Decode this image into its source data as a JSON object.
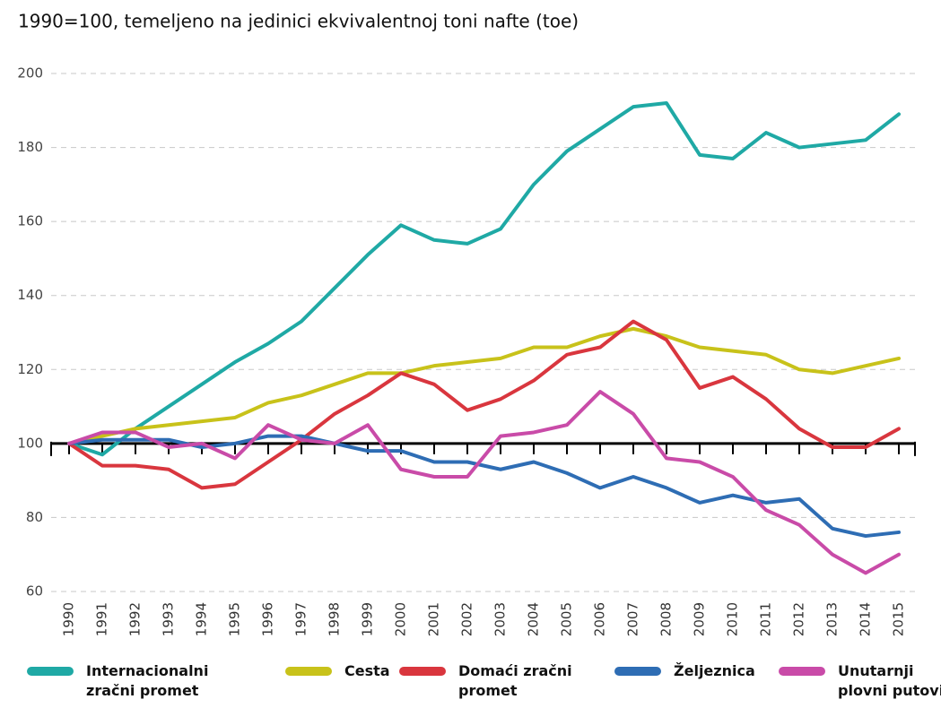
{
  "chart_data": {
    "type": "line",
    "title": "1990=100, temeljeno na jedinici ekvivalentnoj toni nafte (toe)",
    "categories": [
      "1990",
      "1991",
      "1992",
      "1993",
      "1994",
      "1995",
      "1996",
      "1997",
      "1998",
      "1999",
      "2000",
      "2001",
      "2002",
      "2003",
      "2004",
      "2005",
      "2006",
      "2007",
      "2008",
      "2009",
      "2010",
      "2011",
      "2012",
      "2013",
      "2014",
      "2015"
    ],
    "series": [
      {
        "name": "Internacionalni zračni promet",
        "color": "#1fa9a5",
        "values": [
          100,
          97,
          104,
          110,
          116,
          122,
          127,
          133,
          142,
          151,
          159,
          155,
          154,
          158,
          170,
          179,
          185,
          191,
          192,
          178,
          177,
          184,
          180,
          181,
          182,
          189
        ]
      },
      {
        "name": "Cesta",
        "color": "#c8c21a",
        "values": [
          100,
          102,
          104,
          105,
          106,
          107,
          111,
          113,
          116,
          119,
          119,
          121,
          122,
          123,
          126,
          126,
          129,
          131,
          129,
          126,
          125,
          124,
          120,
          119,
          121,
          123
        ]
      },
      {
        "name": "Domaći zračni promet",
        "color": "#d9363e",
        "values": [
          100,
          94,
          94,
          93,
          88,
          89,
          95,
          101,
          108,
          113,
          119,
          116,
          109,
          112,
          117,
          124,
          126,
          133,
          128,
          115,
          118,
          112,
          104,
          99,
          99,
          104
        ]
      },
      {
        "name": "Željeznica",
        "color": "#2e6db4",
        "values": [
          100,
          101,
          101,
          101,
          99,
          100,
          102,
          102,
          100,
          98,
          98,
          95,
          95,
          93,
          95,
          92,
          88,
          91,
          88,
          84,
          86,
          84,
          85,
          77,
          75,
          76
        ]
      },
      {
        "name": "Unutarnji plovni putovi",
        "color": "#c94ba8",
        "values": [
          100,
          103,
          103,
          99,
          100,
          96,
          105,
          101,
          100,
          105,
          93,
          91,
          91,
          102,
          103,
          105,
          114,
          108,
          96,
          95,
          91,
          82,
          78,
          70,
          65,
          70
        ]
      }
    ],
    "ylim": [
      60,
      200
    ],
    "yticks": [
      60,
      80,
      100,
      120,
      140,
      160,
      180,
      200
    ],
    "grid": true,
    "baseline": 100,
    "legend": "bottom"
  }
}
